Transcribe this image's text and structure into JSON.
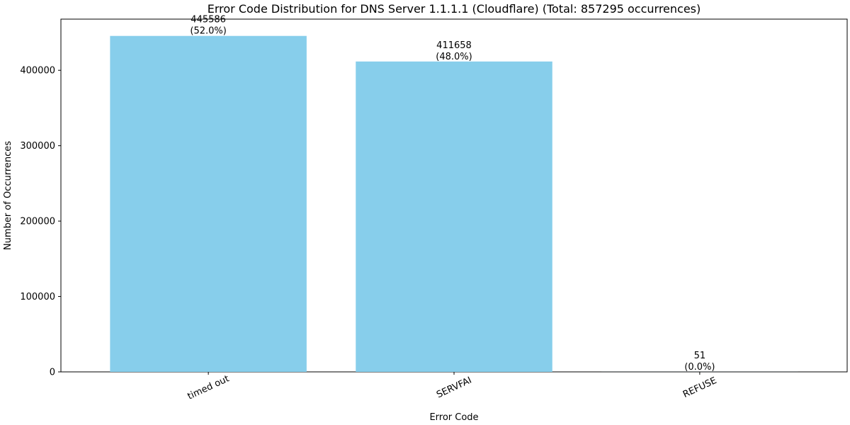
{
  "chart_data": {
    "type": "bar",
    "title": "Error Code Distribution for DNS Server 1.1.1.1 (Cloudflare) (Total: 857295 occurrences)",
    "xlabel": "Error Code",
    "ylabel": "Number of Occurrences",
    "categories": [
      "timed out",
      "SERVFAI",
      "REFUSE"
    ],
    "values": [
      445586,
      411658,
      51
    ],
    "percent_labels": [
      "(52.0%)",
      "(48.0%)",
      "(0.0%)"
    ],
    "ylim": [
      0,
      467860
    ],
    "yticks": [
      0,
      100000,
      200000,
      300000,
      400000
    ],
    "ytick_labels": [
      "0",
      "100000",
      "200000",
      "300000",
      "400000"
    ],
    "grid": false,
    "bar_color": "#87CEEB"
  }
}
